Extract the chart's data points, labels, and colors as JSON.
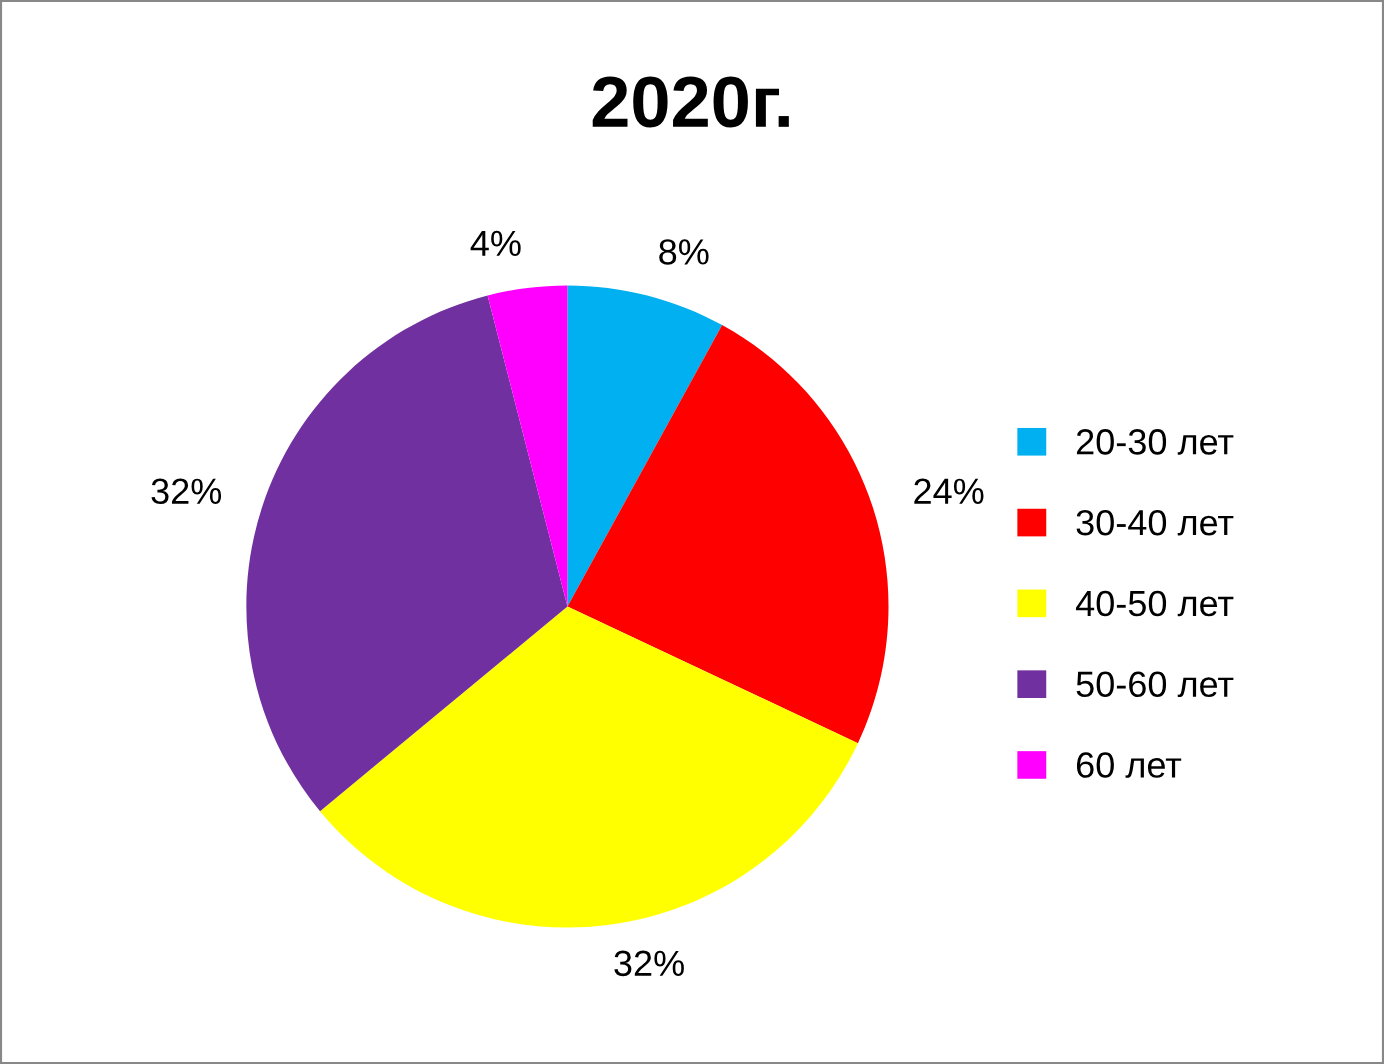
{
  "chart_data": {
    "type": "pie",
    "title": "2020г.",
    "categories": [
      "20-30 лет",
      "30-40 лет",
      "40-50 лет",
      "50-60 лет",
      "60 лет"
    ],
    "values": [
      8,
      24,
      32,
      32,
      4
    ],
    "value_labels": [
      "8%",
      "24%",
      "32%",
      "32%",
      "4%"
    ],
    "colors": [
      "#00b0f0",
      "#ff0000",
      "#ffff00",
      "#7030a0",
      "#ff00ff"
    ],
    "legend": "right"
  }
}
